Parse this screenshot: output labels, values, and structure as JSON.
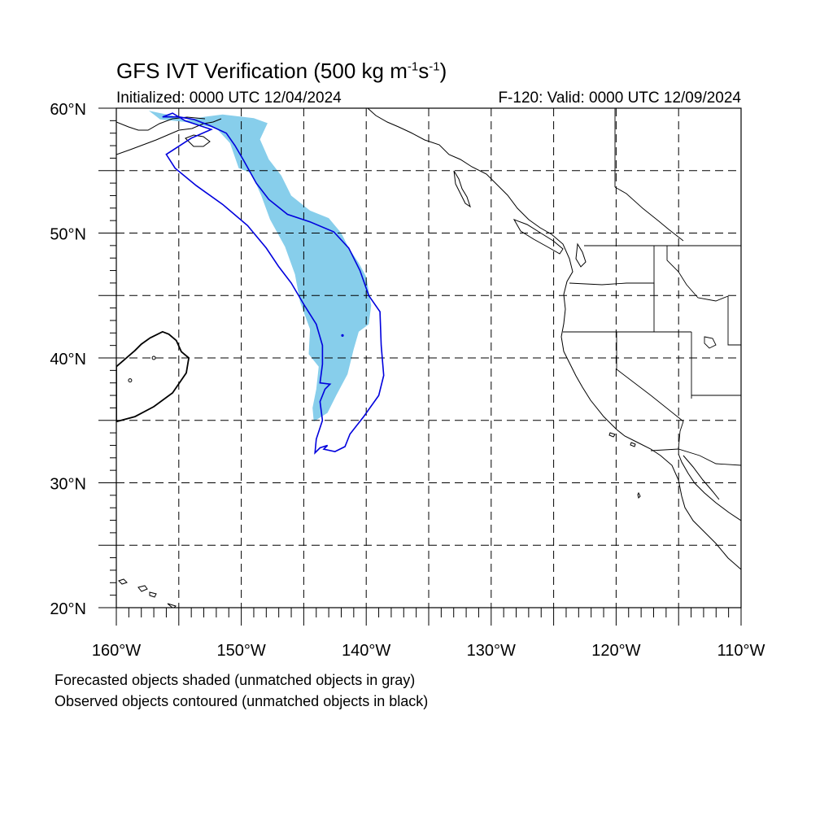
{
  "title": {
    "main": "GFS IVT Verification (500 kg m",
    "exp1": "-1",
    "mid": "s",
    "exp2": "-1",
    "close": ")"
  },
  "init_label": "Initialized: 0000 UTC 12/04/2024",
  "valid_label": "F-120: Valid: 0000 UTC 12/09/2024",
  "notes": {
    "forecast": "Forecasted objects shaded (unmatched objects in gray)",
    "observed": "Observed objects contoured (unmatched objects in black)"
  },
  "map": {
    "lon_range": [
      -160,
      -110
    ],
    "lat_range": [
      20,
      60
    ],
    "lat_labels": [
      {
        "lat": 60,
        "text": "60°N"
      },
      {
        "lat": 50,
        "text": "50°N"
      },
      {
        "lat": 40,
        "text": "40°N"
      },
      {
        "lat": 30,
        "text": "30°N"
      },
      {
        "lat": 20,
        "text": "20°N"
      }
    ],
    "lon_labels": [
      {
        "lon": -160,
        "text": "160°W"
      },
      {
        "lon": -150,
        "text": "150°W"
      },
      {
        "lon": -140,
        "text": "140°W"
      },
      {
        "lon": -130,
        "text": "130°W"
      },
      {
        "lon": -120,
        "text": "120°W"
      },
      {
        "lon": -110,
        "text": "110°W"
      }
    ],
    "grid_lons": [
      -155,
      -150,
      -145,
      -140,
      -135,
      -130,
      -125,
      -120,
      -115
    ],
    "grid_lats": [
      25,
      30,
      35,
      40,
      45,
      50,
      55
    ],
    "colors": {
      "forecast_fill": "#87ceeb",
      "observed_matched": "#0000dd",
      "observed_unmatched": "#000000",
      "coast": "#000000"
    },
    "forecast_object": [
      [
        -157.4,
        59.8
      ],
      [
        -155.5,
        59.4
      ],
      [
        -154.5,
        59.0
      ],
      [
        -153.0,
        59.3
      ],
      [
        -151.5,
        59.5
      ],
      [
        -149.0,
        59.2
      ],
      [
        -147.9,
        58.8
      ],
      [
        -148.5,
        57.5
      ],
      [
        -147.8,
        55.9
      ],
      [
        -146.8,
        54.6
      ],
      [
        -146.0,
        53.0
      ],
      [
        -144.5,
        51.8
      ],
      [
        -143.0,
        51.2
      ],
      [
        -142.0,
        50.0
      ],
      [
        -141.4,
        48.8
      ],
      [
        -140.6,
        47.6
      ],
      [
        -140.0,
        46.5
      ],
      [
        -139.6,
        44.2
      ],
      [
        -139.8,
        42.7
      ],
      [
        -140.6,
        42.1
      ],
      [
        -141.0,
        40.7
      ],
      [
        -141.5,
        38.7
      ],
      [
        -142.4,
        37.0
      ],
      [
        -143.1,
        35.6
      ],
      [
        -144.2,
        34.9
      ],
      [
        -144.3,
        36.0
      ],
      [
        -144.0,
        37.5
      ],
      [
        -143.8,
        39.3
      ],
      [
        -144.6,
        40.3
      ],
      [
        -144.5,
        42.3
      ],
      [
        -145.3,
        44.5
      ],
      [
        -145.7,
        46.7
      ],
      [
        -146.5,
        48.9
      ],
      [
        -147.7,
        51.1
      ],
      [
        -148.4,
        53.0
      ],
      [
        -149.2,
        54.8
      ],
      [
        -150.2,
        55.2
      ],
      [
        -150.9,
        57.2
      ],
      [
        -152.0,
        58.4
      ],
      [
        -154.5,
        58.9
      ],
      [
        -156.5,
        59.1
      ],
      [
        -157.0,
        59.5
      ]
    ],
    "observed_object": [
      [
        -156.3,
        59.3
      ],
      [
        -155.0,
        59.3
      ],
      [
        -153.8,
        59.1
      ],
      [
        -152.5,
        58.6
      ],
      [
        -151.2,
        58.0
      ],
      [
        -150.5,
        57.0
      ],
      [
        -149.8,
        55.8
      ],
      [
        -148.8,
        54.0
      ],
      [
        -147.8,
        52.7
      ],
      [
        -146.3,
        51.5
      ],
      [
        -144.5,
        50.9
      ],
      [
        -142.6,
        50.1
      ],
      [
        -141.4,
        48.8
      ],
      [
        -140.5,
        47.0
      ],
      [
        -139.8,
        45.0
      ],
      [
        -138.9,
        43.7
      ],
      [
        -138.8,
        41.0
      ],
      [
        -138.6,
        38.6
      ],
      [
        -139.0,
        37.0
      ],
      [
        -140.2,
        35.3
      ],
      [
        -141.3,
        33.9
      ],
      [
        -141.7,
        32.9
      ],
      [
        -142.5,
        32.5
      ],
      [
        -143.4,
        32.7
      ],
      [
        -143.1,
        33.0
      ],
      [
        -143.7,
        32.8
      ],
      [
        -144.1,
        32.4
      ],
      [
        -144.0,
        33.5
      ],
      [
        -143.5,
        35.0
      ],
      [
        -143.7,
        36.5
      ],
      [
        -143.3,
        37.5
      ],
      [
        -142.9,
        37.9
      ],
      [
        -143.7,
        38.0
      ],
      [
        -143.5,
        39.5
      ],
      [
        -143.5,
        41.0
      ],
      [
        -144.0,
        42.7
      ],
      [
        -145.0,
        44.3
      ],
      [
        -146.0,
        46.0
      ],
      [
        -147.0,
        47.3
      ],
      [
        -148.0,
        48.8
      ],
      [
        -149.5,
        50.6
      ],
      [
        -151.5,
        52.3
      ],
      [
        -153.6,
        53.8
      ],
      [
        -155.3,
        55.2
      ],
      [
        -156.0,
        56.3
      ],
      [
        -154.0,
        57.6
      ],
      [
        -152.4,
        58.3
      ],
      [
        -154.5,
        59.0
      ],
      [
        -155.5,
        59.6
      ]
    ],
    "unmatched_object": [
      [
        -160.0,
        39.3
      ],
      [
        -158.5,
        40.6
      ],
      [
        -158.0,
        41.1
      ],
      [
        -157.3,
        41.6
      ],
      [
        -156.3,
        42.1
      ],
      [
        -155.8,
        41.9
      ],
      [
        -155.2,
        41.4
      ],
      [
        -154.8,
        40.5
      ],
      [
        -154.2,
        40.0
      ],
      [
        -154.4,
        38.8
      ],
      [
        -155.5,
        37.2
      ],
      [
        -157.0,
        36.1
      ],
      [
        -158.5,
        35.3
      ],
      [
        -160.0,
        34.9
      ]
    ]
  }
}
